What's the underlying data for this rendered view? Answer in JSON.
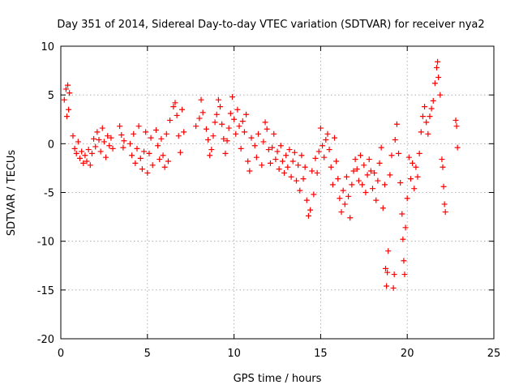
{
  "chart_data": {
    "type": "scatter",
    "title": "Day 351 of 2014, Sidereal Day-to-day VTEC variation (SDTVAR) for receiver nya2",
    "xlabel": "GPS time / hours",
    "ylabel": "SDTVAR / TECUs",
    "xlim": [
      0,
      25
    ],
    "ylim": [
      -20,
      10
    ],
    "xticks": [
      0,
      5,
      10,
      15,
      20,
      25
    ],
    "yticks": [
      10,
      5,
      0,
      -5,
      -10,
      -15,
      -20
    ],
    "grid": true,
    "marker": "+",
    "series": [
      {
        "name": "SDTVAR",
        "color": "#ff0000",
        "points": [
          [
            0.2,
            4.5
          ],
          [
            0.3,
            5.6
          ],
          [
            0.35,
            2.8
          ],
          [
            0.4,
            6.0
          ],
          [
            0.45,
            3.5
          ],
          [
            0.5,
            5.2
          ],
          [
            0.7,
            0.8
          ],
          [
            0.8,
            -0.5
          ],
          [
            0.9,
            -1.0
          ],
          [
            1.0,
            0.2
          ],
          [
            1.1,
            -1.5
          ],
          [
            1.2,
            -0.8
          ],
          [
            1.3,
            -2.0
          ],
          [
            1.4,
            -1.2
          ],
          [
            1.5,
            -1.8
          ],
          [
            1.6,
            -0.6
          ],
          [
            1.7,
            -2.2
          ],
          [
            1.8,
            -1.0
          ],
          [
            1.9,
            0.5
          ],
          [
            2.0,
            -0.3
          ],
          [
            2.1,
            1.2
          ],
          [
            2.2,
            0.4
          ],
          [
            2.3,
            -0.8
          ],
          [
            2.4,
            1.6
          ],
          [
            2.5,
            0.2
          ],
          [
            2.6,
            -1.4
          ],
          [
            2.7,
            0.8
          ],
          [
            2.8,
            -0.2
          ],
          [
            2.9,
            0.6
          ],
          [
            3.0,
            -0.5
          ],
          [
            3.4,
            1.8
          ],
          [
            3.5,
            0.9
          ],
          [
            3.6,
            -0.4
          ],
          [
            3.65,
            0.3
          ],
          [
            4.0,
            0.0
          ],
          [
            4.1,
            -1.2
          ],
          [
            4.2,
            1.0
          ],
          [
            4.3,
            -2.0
          ],
          [
            4.4,
            -0.5
          ],
          [
            4.5,
            1.8
          ],
          [
            4.6,
            -1.5
          ],
          [
            4.7,
            -2.6
          ],
          [
            4.8,
            -0.8
          ],
          [
            4.9,
            1.2
          ],
          [
            5.0,
            -3.0
          ],
          [
            5.1,
            -1.0
          ],
          [
            5.2,
            0.6
          ],
          [
            5.3,
            -2.2
          ],
          [
            5.5,
            1.4
          ],
          [
            5.6,
            -0.2
          ],
          [
            5.7,
            -1.6
          ],
          [
            5.8,
            0.5
          ],
          [
            5.9,
            -1.2
          ],
          [
            6.0,
            -2.4
          ],
          [
            6.1,
            1.0
          ],
          [
            6.2,
            -1.8
          ],
          [
            6.3,
            2.4
          ],
          [
            6.5,
            3.8
          ],
          [
            6.6,
            4.2
          ],
          [
            6.7,
            2.9
          ],
          [
            6.8,
            0.8
          ],
          [
            6.9,
            -0.9
          ],
          [
            7.0,
            3.5
          ],
          [
            7.1,
            1.2
          ],
          [
            7.8,
            1.8
          ],
          [
            8.0,
            2.6
          ],
          [
            8.1,
            4.5
          ],
          [
            8.2,
            3.2
          ],
          [
            8.4,
            1.5
          ],
          [
            8.5,
            0.4
          ],
          [
            8.6,
            -1.2
          ],
          [
            8.7,
            -0.6
          ],
          [
            8.8,
            0.8
          ],
          [
            8.9,
            2.2
          ],
          [
            9.0,
            3.0
          ],
          [
            9.1,
            4.5
          ],
          [
            9.2,
            3.8
          ],
          [
            9.3,
            2.0
          ],
          [
            9.4,
            0.5
          ],
          [
            9.5,
            -1.0
          ],
          [
            9.6,
            0.3
          ],
          [
            9.7,
            1.6
          ],
          [
            9.8,
            3.1
          ],
          [
            9.9,
            4.8
          ],
          [
            10.0,
            2.5
          ],
          [
            10.1,
            1.0
          ],
          [
            10.2,
            3.5
          ],
          [
            10.3,
            1.8
          ],
          [
            10.4,
            -0.5
          ],
          [
            10.5,
            2.3
          ],
          [
            10.6,
            1.2
          ],
          [
            10.7,
            3.0
          ],
          [
            10.8,
            -1.8
          ],
          [
            10.9,
            -2.8
          ],
          [
            11.0,
            0.6
          ],
          [
            11.2,
            -0.2
          ],
          [
            11.3,
            -1.4
          ],
          [
            11.4,
            1.0
          ],
          [
            11.6,
            -2.2
          ],
          [
            11.7,
            0.2
          ],
          [
            11.8,
            2.2
          ],
          [
            11.9,
            1.5
          ],
          [
            12.0,
            -0.6
          ],
          [
            12.1,
            -2.0
          ],
          [
            12.2,
            -0.4
          ],
          [
            12.3,
            1.0
          ],
          [
            12.4,
            -1.6
          ],
          [
            12.5,
            -0.8
          ],
          [
            12.6,
            -2.6
          ],
          [
            12.7,
            -0.2
          ],
          [
            12.8,
            -1.8
          ],
          [
            12.9,
            -3.0
          ],
          [
            13.0,
            -1.2
          ],
          [
            13.1,
            -2.4
          ],
          [
            13.2,
            -0.6
          ],
          [
            13.3,
            -3.4
          ],
          [
            13.4,
            -1.8
          ],
          [
            13.5,
            -0.9
          ],
          [
            13.6,
            -3.8
          ],
          [
            13.7,
            -2.2
          ],
          [
            13.8,
            -4.8
          ],
          [
            13.9,
            -1.2
          ],
          [
            14.0,
            -3.6
          ],
          [
            14.1,
            -2.4
          ],
          [
            14.2,
            -5.8
          ],
          [
            14.3,
            -7.4
          ],
          [
            14.4,
            -6.8
          ],
          [
            14.5,
            -2.8
          ],
          [
            14.6,
            -5.2
          ],
          [
            14.7,
            -1.5
          ],
          [
            14.8,
            -3.0
          ],
          [
            14.9,
            -0.8
          ],
          [
            15.0,
            1.6
          ],
          [
            15.1,
            -0.2
          ],
          [
            15.2,
            -1.4
          ],
          [
            15.3,
            0.4
          ],
          [
            15.4,
            1.0
          ],
          [
            15.5,
            -0.6
          ],
          [
            15.6,
            -2.4
          ],
          [
            15.7,
            -4.2
          ],
          [
            15.8,
            0.6
          ],
          [
            15.9,
            -1.8
          ],
          [
            16.0,
            -3.6
          ],
          [
            16.1,
            -5.6
          ],
          [
            16.2,
            -7.0
          ],
          [
            16.3,
            -4.8
          ],
          [
            16.4,
            -6.2
          ],
          [
            16.5,
            -3.4
          ],
          [
            16.6,
            -5.4
          ],
          [
            16.7,
            -7.6
          ],
          [
            16.8,
            -4.2
          ],
          [
            16.9,
            -2.8
          ],
          [
            17.0,
            -1.6
          ],
          [
            17.1,
            -2.6
          ],
          [
            17.2,
            -3.8
          ],
          [
            17.3,
            -1.2
          ],
          [
            17.4,
            -4.2
          ],
          [
            17.5,
            -2.2
          ],
          [
            17.6,
            -5.0
          ],
          [
            17.7,
            -3.2
          ],
          [
            17.8,
            -1.6
          ],
          [
            17.9,
            -2.8
          ],
          [
            18.0,
            -4.6
          ],
          [
            18.1,
            -3.0
          ],
          [
            18.2,
            -5.8
          ],
          [
            18.3,
            -3.8
          ],
          [
            18.4,
            -2.0
          ],
          [
            18.5,
            -0.4
          ],
          [
            18.6,
            -6.6
          ],
          [
            18.7,
            -4.2
          ],
          [
            18.75,
            -12.8
          ],
          [
            18.8,
            -14.6
          ],
          [
            18.85,
            -13.2
          ],
          [
            18.9,
            -11.0
          ],
          [
            19.0,
            -3.2
          ],
          [
            19.1,
            -1.2
          ],
          [
            19.2,
            -14.8
          ],
          [
            19.25,
            -13.4
          ],
          [
            19.3,
            0.4
          ],
          [
            19.4,
            2.0
          ],
          [
            19.5,
            -1.0
          ],
          [
            19.6,
            -4.0
          ],
          [
            19.7,
            -7.2
          ],
          [
            19.75,
            -9.8
          ],
          [
            19.8,
            -12.0
          ],
          [
            19.85,
            -13.4
          ],
          [
            19.9,
            -8.6
          ],
          [
            20.0,
            -5.6
          ],
          [
            20.1,
            -1.4
          ],
          [
            20.2,
            -3.6
          ],
          [
            20.3,
            -2.0
          ],
          [
            20.4,
            -4.6
          ],
          [
            20.5,
            -2.4
          ],
          [
            20.6,
            -3.4
          ],
          [
            20.7,
            -1.0
          ],
          [
            20.8,
            1.2
          ],
          [
            20.9,
            2.8
          ],
          [
            21.0,
            3.8
          ],
          [
            21.1,
            2.2
          ],
          [
            21.2,
            1.0
          ],
          [
            21.3,
            2.8
          ],
          [
            21.4,
            3.6
          ],
          [
            21.5,
            4.4
          ],
          [
            21.6,
            6.2
          ],
          [
            21.7,
            7.8
          ],
          [
            21.75,
            8.4
          ],
          [
            21.8,
            6.8
          ],
          [
            21.9,
            5.0
          ],
          [
            22.0,
            -1.6
          ],
          [
            22.05,
            -2.4
          ],
          [
            22.1,
            -4.4
          ],
          [
            22.15,
            -6.2
          ],
          [
            22.2,
            -7.0
          ],
          [
            22.8,
            2.4
          ],
          [
            22.85,
            1.8
          ],
          [
            22.9,
            -0.4
          ]
        ]
      }
    ]
  }
}
